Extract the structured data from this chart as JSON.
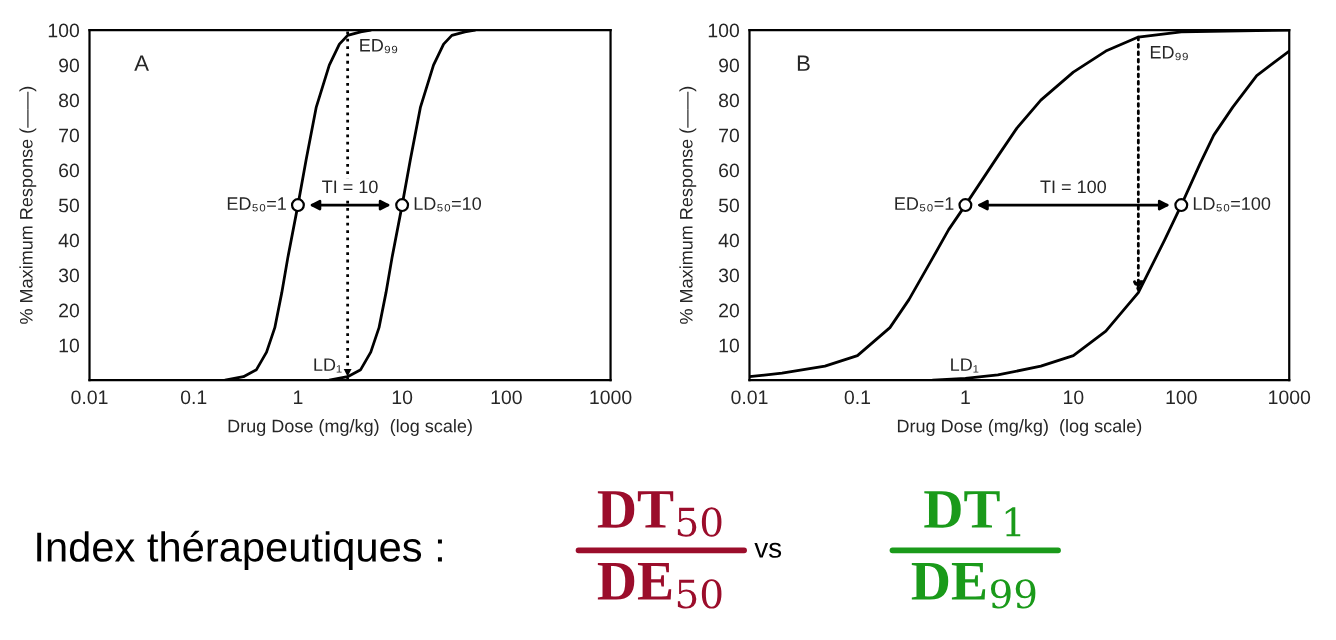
{
  "chart_data": [
    {
      "type": "line",
      "xlabel": "Drug Dose (mg/kg)  (log scale)",
      "ylabel": "% Maximum Response (——)",
      "log": "x",
      "xlim": [
        0.01,
        1000
      ],
      "ylim": [
        0,
        100
      ],
      "xticks": [
        0.01,
        0.1,
        1,
        10,
        100,
        1000
      ],
      "yticks": [
        10,
        20,
        30,
        40,
        50,
        60,
        70,
        80,
        90,
        100
      ],
      "grid": false,
      "legend": false,
      "series": [
        {
          "color": "#000000",
          "x": [
            0.2,
            0.3,
            0.4,
            0.5,
            0.6,
            0.7,
            0.8,
            1,
            1.2,
            1.5,
            2,
            2.5,
            3,
            4,
            5
          ],
          "values": [
            0,
            1,
            3,
            8,
            15,
            25,
            35,
            50,
            63,
            78,
            90,
            96,
            98.5,
            99.5,
            100
          ]
        },
        {
          "color": "#000000",
          "x": [
            2,
            3,
            4,
            5,
            6,
            7,
            8,
            10,
            12,
            15,
            20,
            25,
            30,
            40,
            50
          ],
          "values": [
            0,
            1,
            3,
            8,
            15,
            25,
            35,
            50,
            63,
            78,
            90,
            96,
            98.5,
            99.5,
            100
          ]
        },
        {
          "type": "scatter",
          "color": "#000000",
          "marker": "circle",
          "x": [
            1,
            10
          ],
          "values": [
            50,
            50
          ]
        }
      ],
      "ref_lines": [
        {
          "axis": "x",
          "value": 3,
          "line_style": "dotted",
          "color": "#000000"
        }
      ],
      "annotations": [
        "A",
        {
          "text": "ED₉₉",
          "x": 3,
          "y": 100
        },
        {
          "text": "ED₅₀=1",
          "x": 1,
          "y": 50
        },
        "TI = 10",
        {
          "text": "LD₅₀=10",
          "x": 10,
          "y": 50
        },
        {
          "text": "LD₁",
          "x": 3,
          "y": 0
        }
      ]
    },
    {
      "type": "line",
      "xlabel": "Drug Dose (mg/kg)  (log scale)",
      "ylabel": "% Maximum Response (——)",
      "log": "x",
      "xlim": [
        0.01,
        1000
      ],
      "ylim": [
        0,
        100
      ],
      "xticks": [
        0.01,
        0.1,
        1,
        10,
        100,
        1000
      ],
      "yticks": [
        10,
        20,
        30,
        40,
        50,
        60,
        70,
        80,
        90,
        100
      ],
      "grid": false,
      "legend": false,
      "series": [
        {
          "color": "#000000",
          "x": [
            0.01,
            0.02,
            0.05,
            0.1,
            0.2,
            0.3,
            0.5,
            0.7,
            1,
            2,
            3,
            5,
            10,
            20,
            40,
            100,
            1000
          ],
          "values": [
            1,
            2,
            4,
            7,
            15,
            23,
            35,
            43,
            50,
            64,
            72,
            80,
            88,
            94,
            98,
            99.5,
            100
          ]
        },
        {
          "color": "#000000",
          "x": [
            0.5,
            1,
            2,
            5,
            10,
            20,
            40,
            70,
            100,
            150,
            200,
            300,
            500,
            1000
          ],
          "values": [
            0,
            0.5,
            1.5,
            4,
            7,
            14,
            25,
            40,
            50,
            62,
            70,
            78,
            87,
            94
          ]
        },
        {
          "type": "scatter",
          "color": "#000000",
          "marker": "circle",
          "x": [
            1,
            100
          ],
          "values": [
            50,
            50
          ]
        }
      ],
      "annotations": [
        "B",
        {
          "text": "ED₉₉",
          "x": 40,
          "y": 98
        },
        {
          "text": "ED₅₀=1",
          "x": 1,
          "y": 50
        },
        "TI = 100",
        {
          "text": "LD₅₀=100",
          "x": 100,
          "y": 50
        },
        {
          "text": "LD₁",
          "x": 1.5,
          "y": 0
        }
      ]
    },
    {
      "type": "other",
      "annotations": [
        "Index thérapeutiques :",
        "DT$_{50}$",
        "DE$_{50}$",
        "vs",
        "DT$_{1}$",
        "DE$_{99}$"
      ],
      "colors": [
        "#000000",
        "#9b0d2b",
        "#9b0d2b",
        "#000000",
        "#1a9a1a",
        "#1a9a1a"
      ]
    }
  ]
}
